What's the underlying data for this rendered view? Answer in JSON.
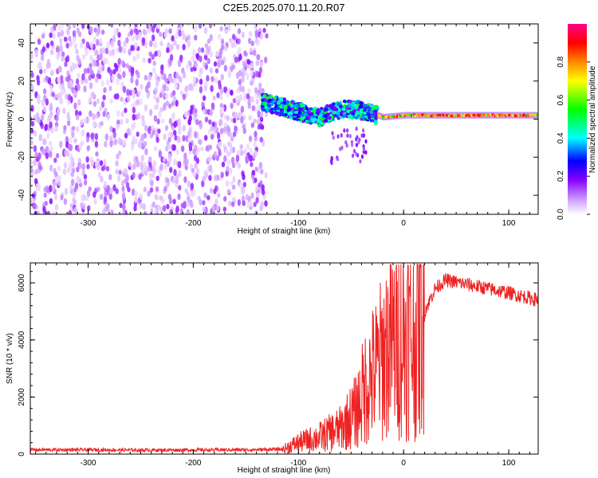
{
  "title": "C2E5.2025.070.11.20.R07",
  "chart_data": [
    {
      "type": "heatmap",
      "xlabel": "Height of straight line (km)",
      "ylabel": "Frequency (Hz)",
      "xlim": [
        -355,
        128
      ],
      "ylim": [
        -50,
        50
      ],
      "x_ticks": [
        -300,
        -200,
        -100,
        0,
        100
      ],
      "x_tick_labels": [
        "-300",
        "-200",
        "-100",
        "0",
        "100"
      ],
      "y_ticks": [
        -40,
        -20,
        0,
        20,
        40
      ],
      "y_tick_labels": [
        "-40",
        "-20",
        "0",
        "20",
        "40"
      ],
      "colorbar": {
        "label": "Normalized spectral amplitude",
        "range": [
          0,
          1
        ],
        "ticks": [
          0,
          0.2,
          0.4,
          0.6,
          0.8
        ],
        "tick_labels": [
          "0.0",
          "0.2",
          "0.4",
          "0.6",
          "0.8"
        ],
        "colormap": [
          "#ffffff",
          "#cc99ff",
          "#8800ff",
          "#0000ff",
          "#00ffff",
          "#00ff00",
          "#ffff00",
          "#ff8800",
          "#ff0000",
          "#ff0088"
        ]
      },
      "regions": [
        {
          "x": [
            -355,
            -130
          ],
          "f": [
            -50,
            50
          ],
          "description_amp": 0.15
        },
        {
          "x": [
            -135,
            -25
          ],
          "f": [
            -8,
            14
          ],
          "description_amp": 0.35
        },
        {
          "x": [
            -25,
            128
          ],
          "f": [
            -1,
            3
          ],
          "description_amp": 0.9
        }
      ],
      "signal_trace": [
        {
          "x": -135,
          "f": 9
        },
        {
          "x": -120,
          "f": 7
        },
        {
          "x": -100,
          "f": 4
        },
        {
          "x": -80,
          "f": 1
        },
        {
          "x": -60,
          "f": 5
        },
        {
          "x": -45,
          "f": 5
        },
        {
          "x": -30,
          "f": 3
        },
        {
          "x": -20,
          "f": 1
        },
        {
          "x": 0,
          "f": 2
        },
        {
          "x": 50,
          "f": 2
        },
        {
          "x": 128,
          "f": 2
        }
      ]
    },
    {
      "type": "line",
      "xlabel": "Height of straight line (km)",
      "ylabel": "SNR (10 * v/v)",
      "xlim": [
        -355,
        128
      ],
      "ylim": [
        0,
        6700
      ],
      "x_ticks": [
        -300,
        -200,
        -100,
        0,
        100
      ],
      "x_tick_labels": [
        "-300",
        "-200",
        "-100",
        "0",
        "100"
      ],
      "y_ticks": [
        0,
        2000,
        4000,
        6000
      ],
      "y_tick_labels": [
        "0",
        "2000",
        "4000",
        "6000"
      ],
      "color": "#ee2222",
      "series": [
        {
          "x": [
            -355,
            -300,
            -250,
            -200,
            -150,
            -115,
            -100,
            -80,
            -60,
            -45,
            -35,
            -25,
            -15,
            -5,
            5,
            10,
            20,
            30,
            40,
            60,
            80,
            100,
            128
          ],
          "values": [
            150,
            150,
            140,
            145,
            150,
            170,
            400,
            600,
            900,
            1500,
            2500,
            3000,
            3800,
            4000,
            4200,
            3900,
            5000,
            5800,
            6100,
            5950,
            5800,
            5650,
            5400
          ]
        }
      ]
    }
  ]
}
